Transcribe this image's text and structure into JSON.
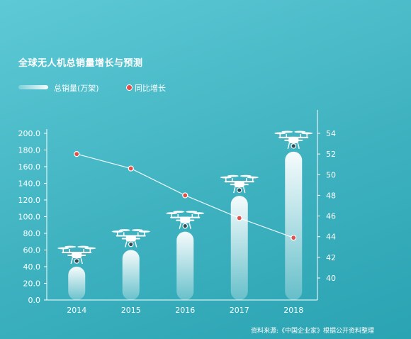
{
  "title": "全球无人机总销量增长与预测",
  "legend": {
    "bar_label": "总销量(万架)",
    "line_label": "同比增长"
  },
  "source": "资料来源:《中国企业家》根据公开资料整理",
  "colors": {
    "bar": "#ffffff",
    "line": "#ffffff",
    "point": "#e0514b",
    "axis": "#ffffff"
  },
  "chart_data": {
    "type": "bar",
    "title": "全球无人机总销量增长与预测",
    "categories": [
      "2014",
      "2015",
      "2016",
      "2017",
      "2018"
    ],
    "series": [
      {
        "name": "总销量(万架)",
        "type": "bar",
        "axis": "left",
        "values": [
          40,
          60,
          82,
          125,
          178
        ]
      },
      {
        "name": "同比增长",
        "type": "line",
        "axis": "right",
        "values": [
          52.0,
          50.6,
          48.0,
          45.8,
          43.9
        ]
      }
    ],
    "y_left": {
      "min": 0,
      "max": 200,
      "ticks": [
        "0.0",
        "20.0",
        "40.0",
        "60.0",
        "80.0",
        "100.0",
        "120.0",
        "140.0",
        "160.0",
        "180.0",
        "200.0"
      ]
    },
    "y_right": {
      "min": 38,
      "max": 54,
      "ticks": [
        "40",
        "42",
        "44",
        "46",
        "48",
        "50",
        "52",
        "54"
      ]
    },
    "bar_icon": "drone-icon",
    "grid": false,
    "legend_position": "top-left"
  }
}
